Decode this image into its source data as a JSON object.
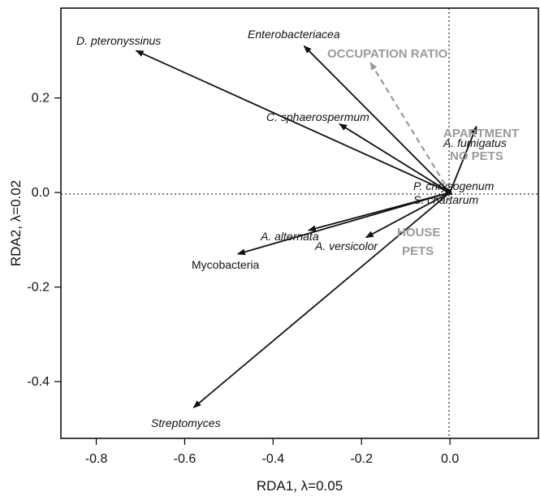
{
  "chart_data": {
    "type": "scatter",
    "subtype": "rda-biplot",
    "xlabel": "RDA1, λ=0.05",
    "ylabel": "RDA2, λ=0.02",
    "xlim": [
      -0.88,
      0.2
    ],
    "ylim": [
      -0.52,
      0.39
    ],
    "xticks": [
      "-0.8",
      "-0.6",
      "-0.4",
      "-0.2",
      "0.0"
    ],
    "yticks": [
      "0.2",
      "0.0",
      "-0.2",
      "-0.4"
    ],
    "reference_lines": {
      "x": 0,
      "y": 0,
      "style": "dotted"
    },
    "species_vectors": [
      {
        "name": "D. pteronyssinus",
        "x": -0.71,
        "y": 0.3,
        "italic": true
      },
      {
        "name": "Enterobacteriacea",
        "x": -0.33,
        "y": 0.31,
        "italic": true
      },
      {
        "name": "C. sphaerospermum",
        "x": -0.25,
        "y": 0.145,
        "italic": true
      },
      {
        "name": "A. fumigatus",
        "x": 0.06,
        "y": 0.14,
        "italic": true
      },
      {
        "name": "P. chrysogenum",
        "x": -0.015,
        "y": 0.007,
        "italic": true
      },
      {
        "name": "S. chartarum",
        "x": -0.012,
        "y": -0.003,
        "italic": true
      },
      {
        "name": "A. alternata",
        "x": -0.32,
        "y": -0.08,
        "italic": true
      },
      {
        "name": "A. versicolor",
        "x": -0.19,
        "y": -0.095,
        "italic": true
      },
      {
        "name": "Mycobacteria",
        "x": -0.48,
        "y": -0.13,
        "italic": false
      },
      {
        "name": "Streptomyces",
        "x": -0.58,
        "y": -0.455,
        "italic": true
      }
    ],
    "environment_vectors": [
      {
        "name": "OCCUPATION RATIO",
        "x": -0.18,
        "y": 0.275
      }
    ],
    "environment_centroids": [
      {
        "lines": [
          "APARTMENT",
          "NO PETS"
        ]
      },
      {
        "lines": [
          "HOUSE",
          "PETS"
        ]
      }
    ],
    "colors": {
      "species": "#111111",
      "environment": "#9a9a9a",
      "axis": "#000000"
    }
  }
}
